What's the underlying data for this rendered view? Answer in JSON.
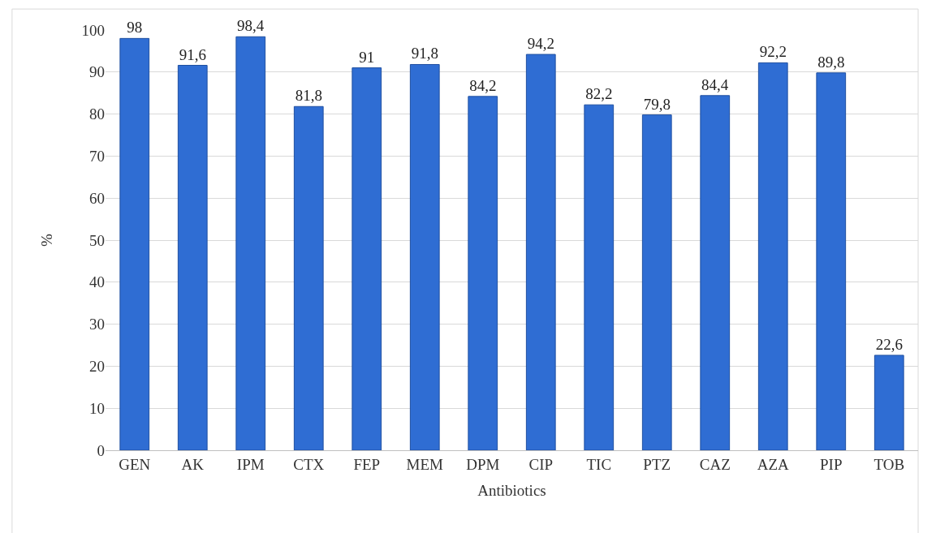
{
  "chart_data": {
    "type": "bar",
    "xlabel": "Antibiotics",
    "ylabel": "%",
    "categories": [
      "GEN",
      "AK",
      "IPM",
      "CTX",
      "FEP",
      "MEM",
      "DPM",
      "CIP",
      "TIC",
      "PTZ",
      "CAZ",
      "AZA",
      "PIP",
      "TOB"
    ],
    "values": [
      98,
      91.6,
      98.4,
      81.8,
      91,
      91.8,
      84.2,
      94.2,
      82.2,
      79.8,
      84.4,
      92.2,
      89.8,
      22.6
    ],
    "value_labels": [
      "98",
      "91,6",
      "98,4",
      "81,8",
      "91",
      "91,8",
      "84,2",
      "94,2",
      "82,2",
      "79,8",
      "84,4",
      "92,2",
      "89,8",
      "22,6"
    ],
    "color": "#2f6dd3",
    "ylim": [
      0,
      100
    ],
    "yticks": [
      0,
      10,
      20,
      30,
      40,
      50,
      60,
      70,
      80,
      90,
      100
    ],
    "grid": "y"
  }
}
